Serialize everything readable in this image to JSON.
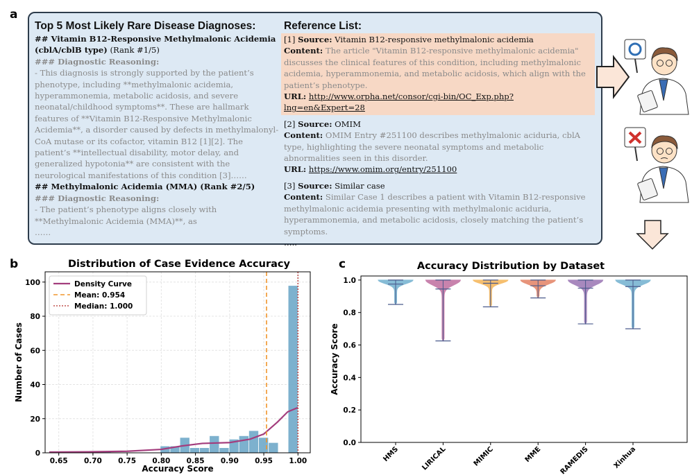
{
  "panel_labels": [
    "a",
    "b",
    "c"
  ],
  "diagnoses": {
    "title": "Top 5 Most Likely Rare Disease Diagnoses:",
    "reasoning_label": "### Diagnostic Reasoning:",
    "items": [
      {
        "heading": "## Vitamin B12-Responsive Methylmalonic Acidemia (cblA/cblB type)",
        "rank": "(Rank #1/5)",
        "reasoning": "- This diagnosis is strongly supported by the patient’s phenotype, including **methylmalonic acidemia, hyperammonemia, metabolic acidosis, and severe neonatal/childhood symptoms**. These are hallmark features of **Vitamin B12-Responsive Methylmalonic Acidemia**, a disorder caused by defects in methylmalonyl-CoA mutase or its cofactor, vitamin B12 [1][2]. The patient’s **intellectual disability, motor delay, and generalized hypotonia** are consistent with the neurological manifestations of this condition [3]……"
      },
      {
        "heading": "## Methylmalonic Acidemia (MMA) (Rank #2/5)",
        "rank": null,
        "reasoning": "- The patient’s phenotype aligns closely with **Methylmalonic Acidemia (MMA)**, as"
      }
    ],
    "ellipsis": "……"
  },
  "references": {
    "title": "Reference List:",
    "labels": {
      "source": "Source:",
      "content": "Content:",
      "url": "URL:"
    },
    "items": [
      {
        "index": "[1]",
        "source": "Vitamin B12-responsive methylmalonic acidemia",
        "content": "The article \"Vitamin B12-responsive methylmalonic acidemia\" discusses the clinical features of this condition, including methylmalonic acidemia, hyperammonemia, and metabolic acidosis, which align with the patient’s phenotype.",
        "url": "http://www.orpha.net/consor/cgi-bin/OC_Exp.php?lng=en&Expert=28"
      },
      {
        "index": "[2]",
        "source": "OMIM",
        "content": "OMIM Entry #251100 describes methylmalonic aciduria, cblA type, highlighting the severe neonatal symptoms and metabolic abnormalities seen in this disorder.",
        "url": "https://www.omim.org/entry/251100"
      },
      {
        "index": "[3]",
        "source": "Similar case",
        "content": "Similar Case 1 describes a patient with Vitamin B12-responsive methylmalonic acidemia presenting with methylmalonic aciduria, hyperammonemia, and metabolic acidosis, closely matching the patient’s symptoms.",
        "url": null
      }
    ],
    "ellipsis": "….."
  },
  "chart_data": [
    {
      "type": "histogram",
      "title": "Distribution of Case Evidence Accuracy",
      "x_label": "Accuracy Score",
      "y_label": "Number of Cases",
      "bins": [
        0.64,
        0.6544,
        0.6688,
        0.6832,
        0.6976,
        0.712,
        0.7264,
        0.7408,
        0.7552,
        0.7696,
        0.784,
        0.7984,
        0.8128,
        0.8272,
        0.8416,
        0.856,
        0.8704,
        0.8848,
        0.8992,
        0.9136,
        0.928,
        0.9424,
        0.9568,
        0.9712,
        0.9856,
        1.0
      ],
      "values": [
        0,
        0,
        0,
        0,
        0,
        1,
        0,
        0,
        0,
        0,
        0,
        4,
        4,
        9,
        3,
        3,
        10,
        3,
        8,
        10,
        13,
        9,
        6,
        0,
        98
      ],
      "color": "#6fa9c9",
      "xlim": [
        0.63,
        1.018
      ],
      "ylim": [
        0,
        106
      ],
      "xticks": [
        0.65,
        {
          "value": 0.7,
          "label": "0.70"
        },
        0.75,
        {
          "value": 0.8,
          "label": "0.80"
        },
        0.85,
        {
          "value": 0.9,
          "label": "0.90"
        },
        0.95,
        {
          "value": 1,
          "label": "1.00"
        }
      ],
      "yticks": [
        0,
        20,
        40,
        60,
        80,
        100
      ],
      "grid": true,
      "legend": "upper left",
      "density_curve": {
        "name": "Density Curve",
        "color": "#a33d7d",
        "x": [
          0.636,
          0.7,
          0.75,
          0.8,
          0.83,
          0.86,
          0.9,
          0.93,
          0.95,
          0.97,
          0.985,
          1.0
        ],
        "values": [
          0.4,
          0.6,
          0.9,
          2,
          4,
          5.5,
          6,
          8,
          11,
          18,
          24,
          26.5
        ]
      },
      "reference_lines": [
        {
          "name": "Mean: 0.954",
          "value": 0.954,
          "color": "#f0952c",
          "style": "dashed"
        },
        {
          "name": "Median: 1.000",
          "value": 1,
          "color": "#c0504d",
          "style": "dotted"
        }
      ]
    },
    {
      "type": "violin",
      "title": "Accuracy Distribution by Dataset",
      "y_label": "Accuracy Score",
      "categories": [
        "HMS",
        "LIRICAL",
        "MIMIC",
        "MME",
        "RAMEDIS",
        "Xinhua"
      ],
      "colors": [
        "#5ea6c9",
        "#b65a92",
        "#f3aa3f",
        "#e0714f",
        "#8b62a9",
        "#5ea6c9"
      ],
      "line_color": "#4a5a8c",
      "min": [
        0.85,
        0.625,
        0.835,
        0.89,
        0.73,
        0.7
      ],
      "median": [
        0.975,
        0.945,
        0.98,
        0.965,
        0.95,
        0.96
      ],
      "max": [
        1,
        1,
        1,
        1,
        1,
        1
      ],
      "ylim": [
        0,
        1.025
      ],
      "yticks": [
        {
          "value": 0,
          "label": "0.0"
        },
        0.2,
        0.4,
        0.6,
        0.8,
        {
          "value": 1,
          "label": "1.0"
        }
      ],
      "grid": false
    }
  ]
}
